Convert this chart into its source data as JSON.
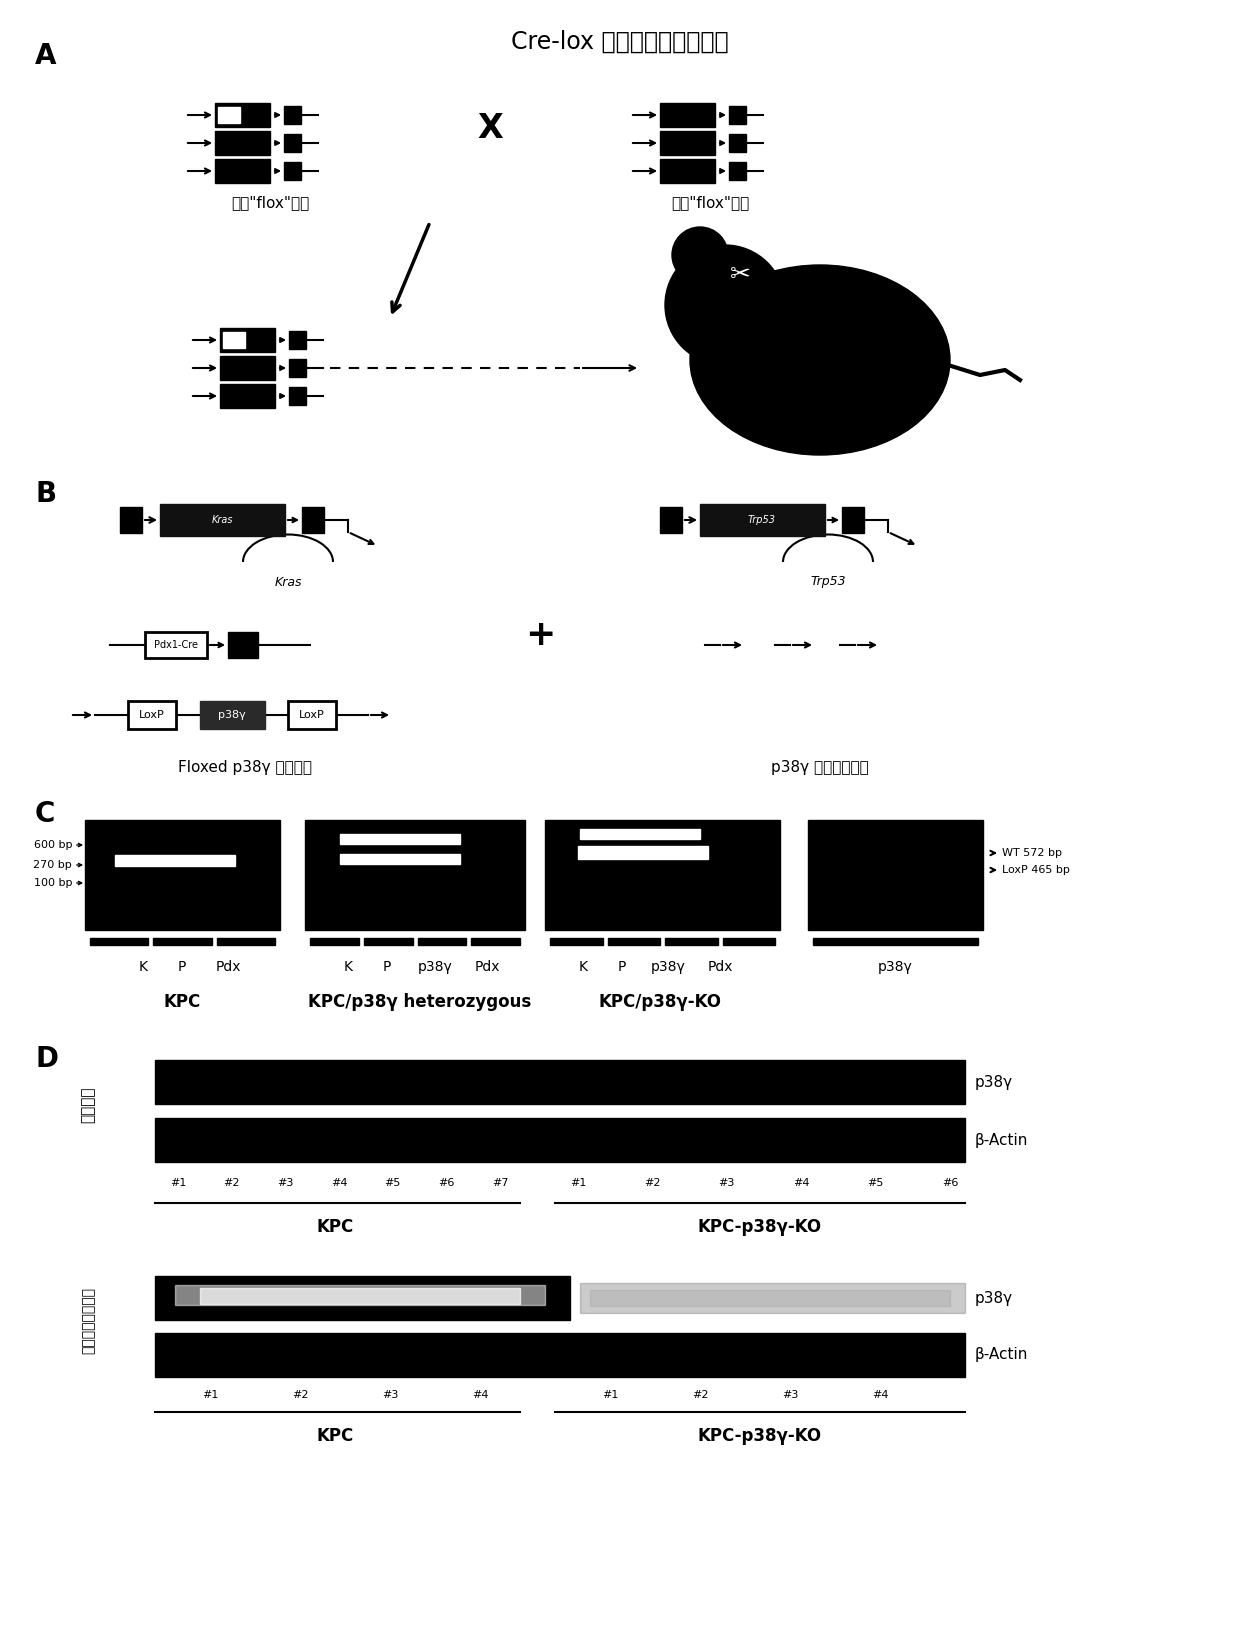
{
  "title_A": "Cre-lox 组织特异性敲除技术",
  "label_A": "A",
  "label_B": "B",
  "label_C": "C",
  "label_D": "D",
  "text_hybrid_mouse": "杂合\"flox\"小鼠",
  "text_pure_mouse": "纯合\"flox\"小鼠",
  "text_floxed": "Floxed p38γ 等位基因",
  "text_deleted": "p38γ 等位基因敲除",
  "text_KPC": "KPC",
  "text_KPC_het": "KPC/p38γ heterozygous",
  "text_KPC_KO": "KPC/p38γ-KO",
  "text_600bp": "600 bp",
  "text_270bp": "270 bp",
  "text_100bp": "100 bp",
  "text_WT": "WT 572 bp",
  "text_LoxP": "LoxP 465 bp",
  "text_tumor": "肿瘤组织",
  "text_cells": "分离原代胰癌细胞",
  "text_p38g": "p38γ",
  "text_bactin": "β-Actin",
  "text_KPC_label1": "KPC",
  "text_KPC_KO_label1": "KPC-p38γ-KO",
  "text_KPC_label2": "KPC",
  "text_KPC_KO_label2": "KPC-p38γ-KO",
  "bg_color": "#ffffff",
  "black": "#000000"
}
